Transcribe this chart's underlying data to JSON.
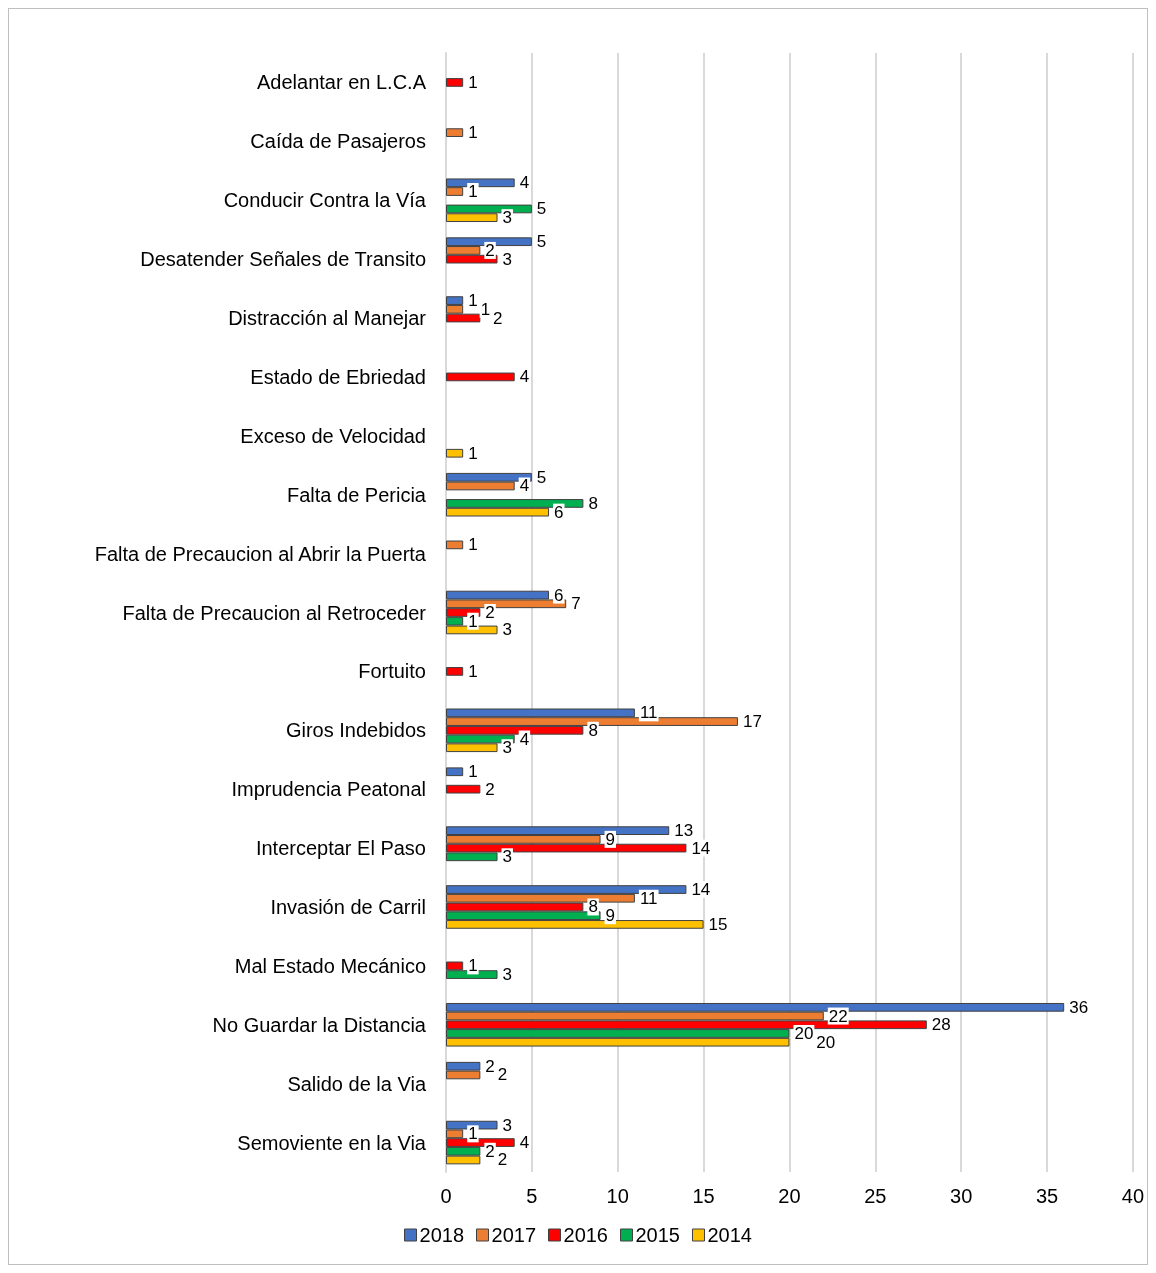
{
  "chart_data": {
    "type": "bar",
    "orientation": "horizontal",
    "categories": [
      "Adelantar en L.C.A",
      "Caída de Pasajeros",
      "Conducir Contra la Vía",
      "Desatender Señales de Transito",
      "Distracción al Manejar",
      "Estado de Ebriedad",
      "Exceso de Velocidad",
      "Falta de Pericia",
      "Falta de Precaucion al Abrir la Puerta",
      "Falta de Precaucion al Retroceder",
      "Fortuito",
      "Giros Indebidos",
      "Imprudencia Peatonal",
      "Interceptar El Paso",
      "Invasión de Carril",
      "Mal Estado Mecánico",
      "No Guardar la Distancia",
      "Salido de la Via",
      "Semoviente en la Via"
    ],
    "series": [
      {
        "name": "2018",
        "color": "#4472c4",
        "values": [
          null,
          null,
          4,
          5,
          1,
          null,
          null,
          5,
          null,
          6,
          null,
          11,
          1,
          13,
          14,
          null,
          36,
          2,
          3
        ]
      },
      {
        "name": "2017",
        "color": "#ed7d31",
        "values": [
          null,
          1,
          1,
          2,
          1,
          null,
          null,
          4,
          1,
          7,
          null,
          17,
          null,
          9,
          11,
          null,
          22,
          2,
          1
        ]
      },
      {
        "name": "2016",
        "color": "#ff0000",
        "values": [
          1,
          null,
          null,
          3,
          2,
          4,
          null,
          null,
          null,
          2,
          1,
          8,
          2,
          14,
          8,
          1,
          28,
          null,
          4
        ]
      },
      {
        "name": "2015",
        "color": "#00b050",
        "values": [
          null,
          null,
          5,
          null,
          null,
          null,
          null,
          8,
          null,
          1,
          null,
          4,
          null,
          3,
          9,
          3,
          20,
          null,
          2
        ]
      },
      {
        "name": "2014",
        "color": "#ffc000",
        "values": [
          null,
          null,
          3,
          null,
          null,
          null,
          1,
          6,
          null,
          3,
          null,
          3,
          null,
          null,
          15,
          null,
          20,
          null,
          2
        ]
      }
    ],
    "xlim": [
      0,
      40
    ],
    "xticks": [
      0,
      5,
      10,
      15,
      20,
      25,
      30,
      35,
      40
    ],
    "grid": "x",
    "legend": "bottom",
    "data_labels": true
  }
}
